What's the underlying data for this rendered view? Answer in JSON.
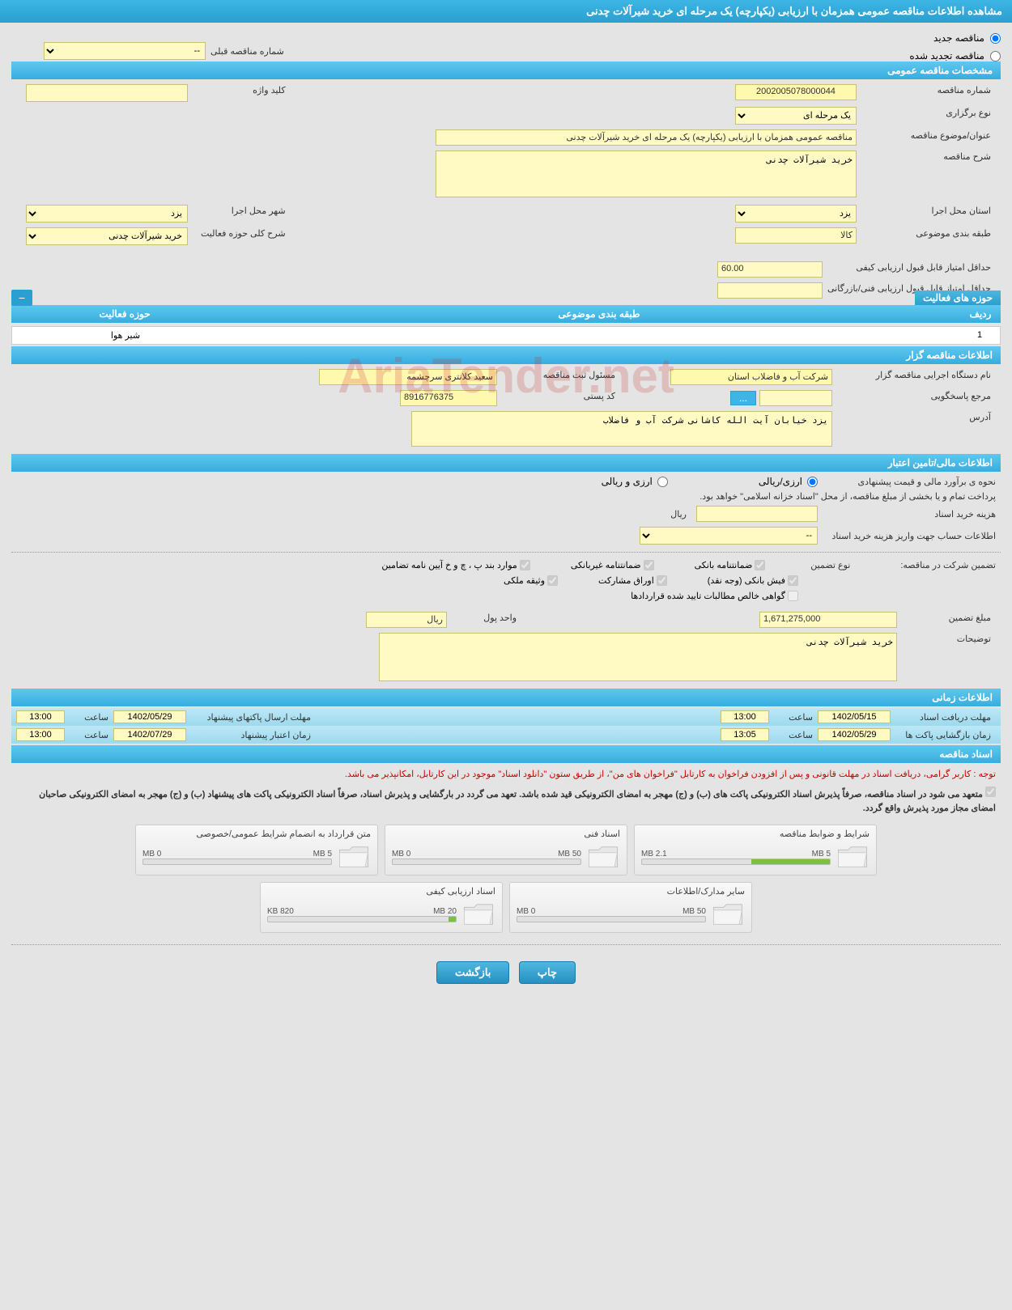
{
  "header": {
    "title": "مشاهده اطلاعات مناقصه عمومی همزمان با ارزیابی (یکپارچه) یک مرحله ای خرید شیرآلات چدنی"
  },
  "top": {
    "new_tender": "مناقصه جدید",
    "renewed_tender": "مناقصه تجدید شده",
    "prev_number_label": "شماره مناقصه قبلی",
    "prev_number_value": "--"
  },
  "sections": {
    "general": "مشخصات مناقصه عمومی",
    "holder": "اطلاعات مناقصه گزار",
    "financial": "اطلاعات مالی/تامین اعتبار",
    "timing": "اطلاعات زمانی",
    "docs": "اسناد مناقصه"
  },
  "general": {
    "number_label": "شماره مناقصه",
    "number_value": "2002005078000044",
    "keyword_label": "کلید واژه",
    "keyword_value": "",
    "type_label": "نوع برگزاری",
    "type_value": "یک مرحله ای",
    "title_label": "عنوان/موضوع مناقصه",
    "title_value": "مناقصه عمومی همزمان با ارزیابی (یکپارچه) یک مرحله ای خرید شیرآلات چدنی",
    "desc_label": "شرح مناقصه",
    "desc_value": "خرید شیرآلات چدنی",
    "province_label": "استان محل اجرا",
    "province_value": "یزد",
    "city_label": "شهر محل اجرا",
    "city_value": "یزد",
    "topic_cat_label": "طبقه بندی موضوعی",
    "topic_cat_value": "کالا",
    "activity_desc_label": "شرح کلی حوزه فعالیت",
    "activity_desc_value": "خرید شیرآلات چدنی",
    "min_qual_score_label": "حداقل امتیاز قابل قبول ارزیابی کیفی",
    "min_qual_score_value": "60.00",
    "min_tech_score_label": "حداقل امتیاز قابل قبول ارزیابی فنی/بازرگانی",
    "min_tech_score_value": ""
  },
  "activities": {
    "title": "حوزه های فعالیت",
    "col_num": "ردیف",
    "col_cat": "طبقه بندی موضوعی",
    "col_act": "حوزه فعالیت",
    "rows": [
      {
        "num": "1",
        "cat": "",
        "act": "شیر هوا"
      }
    ]
  },
  "holder": {
    "org_label": "نام دستگاه اجرایی مناقصه گزار",
    "org_value": "شرکت آب و فاضلاب استان",
    "resp_label": "مسئول ثبت مناقصه",
    "resp_value": "سعید کلانتری سرچشمه",
    "ref_label": "مرجع پاسخگویی",
    "ref_value": "",
    "ref_btn": "...",
    "postal_label": "کد پستی",
    "postal_value": "8916776375",
    "address_label": "آدرس",
    "address_value": "یزد خیابان آیت الله کاشانی شرکت آب و فاضلاب"
  },
  "financial": {
    "estimate_label": "نحوه ی برآورد مالی و قیمت پیشنهادی",
    "radio_rial": "ارزی/ریالی",
    "radio_fx": "ارزی و ریالی",
    "note_line": "پرداخت تمام و یا بخشی از مبلغ مناقصه، از محل \"اسناد خزانه اسلامی\" خواهد بود.",
    "doc_cost_label": "هزینه خرید اسناد",
    "doc_cost_unit": "ریال",
    "account_label": "اطلاعات حساب جهت واریز هزینه خرید اسناد",
    "account_value": "--",
    "guarantee_label": "تضمین شرکت در مناقصه:",
    "guarantee_type_label": "نوع تضمین",
    "cb_bank": "ضمانتنامه بانکی",
    "cb_nonbank": "ضمانتنامه غیربانکی",
    "cb_bond": "موارد بند پ ، چ و خ آیین نامه تضامین",
    "cb_fish": "فیش بانکی (وجه نقد)",
    "cb_stock": "اوراق مشارکت",
    "cb_property": "وثیقه ملکی",
    "cb_claims": "گواهی خالص مطالبات تایید شده قراردادها",
    "amount_label": "مبلغ تضمین",
    "amount_value": "1,671,275,000",
    "unit_label": "واحد پول",
    "unit_value": "ریال",
    "explain_label": "توضیحات",
    "explain_value": "خرید شیرآلات چدنی"
  },
  "timing": {
    "receive_label": "مهلت دریافت اسناد",
    "receive_date": "1402/05/15",
    "receive_time_label": "ساعت",
    "receive_time": "13:00",
    "send_label": "مهلت ارسال پاکتهای پیشنهاد",
    "send_date": "1402/05/29",
    "send_time": "13:00",
    "open_label": "زمان بازگشایی پاکت ها",
    "open_date": "1402/05/29",
    "open_time": "13:05",
    "valid_label": "زمان اعتبار پیشنهاد",
    "valid_date": "1402/07/29",
    "valid_time": "13:00"
  },
  "docs": {
    "note1": "توجه : کاربر گرامی، دریافت اسناد در مهلت قانونی و پس از افزودن فراخوان به کارتابل \"فراخوان های من\"، از طریق ستون \"دانلود اسناد\" موجود در این کارتابل، امکانپذیر می باشد.",
    "note2": "متعهد می شود در اسناد مناقصه، صرفاً پذیرش اسناد الکترونیکی پاکت های (ب) و (ج) مهجر به امضای الکترونیکی قید شده باشد. تعهد می گردد در بارگشایی و پذیرش اسناد، صرفاً اسناد الکترونیکی پاکت های پیشنهاد (ب) و (ج) مهجر به امضای الکترونیکی صاحبان امضای مجاز مورد پذیرش واقع گردد.",
    "files": [
      {
        "title": "شرایط و ضوابط مناقصه",
        "used": "2.1 MB",
        "total": "5 MB",
        "pct": 42
      },
      {
        "title": "اسناد فنی",
        "used": "0 MB",
        "total": "50 MB",
        "pct": 0
      },
      {
        "title": "متن قرارداد به انضمام شرایط عمومی/خصوصی",
        "used": "0 MB",
        "total": "5 MB",
        "pct": 0
      },
      {
        "title": "سایر مدارک/اطلاعات",
        "used": "0 MB",
        "total": "50 MB",
        "pct": 0
      },
      {
        "title": "اسناد ارزیابی کیفی",
        "used": "820 KB",
        "total": "20 MB",
        "pct": 4
      }
    ]
  },
  "buttons": {
    "print": "چاپ",
    "back": "بازگشت"
  },
  "watermark": "AriaTender.net",
  "colors": {
    "header_bg": "#2a9fd0",
    "section_bg": "#36ade0",
    "field_bg": "#fff9c4",
    "progress_fill": "#7cc142"
  }
}
